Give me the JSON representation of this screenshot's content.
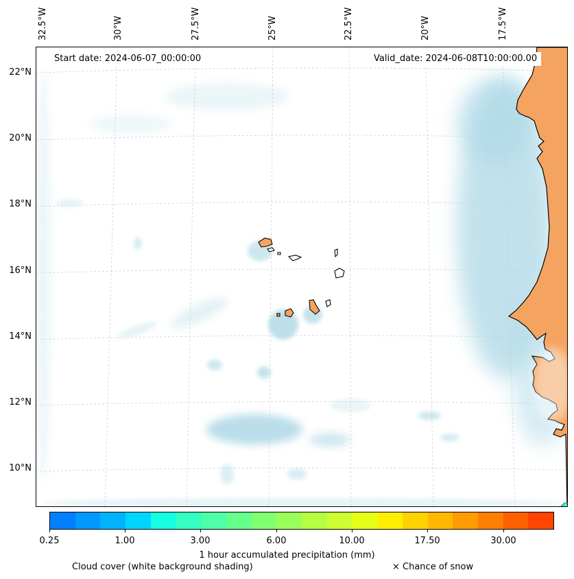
{
  "header": {
    "start_date": "Start date: 2024-06-07_00:00:00",
    "valid_date": "Valid_date: 2024-06-08T10:00:00.00"
  },
  "axes": {
    "longitude_labels": [
      "32.5°W",
      "30°W",
      "27.5°W",
      "25°W",
      "22.5°W",
      "20°W",
      "17.5°W"
    ],
    "latitude_labels": [
      "22°N",
      "20°N",
      "18°N",
      "16°N",
      "14°N",
      "12°N",
      "10°N"
    ]
  },
  "colorbar": {
    "colors": [
      "#0080ff",
      "#0099ff",
      "#00b3ff",
      "#00d5ff",
      "#16ffe0",
      "#33ffc2",
      "#4dffa8",
      "#66ff8c",
      "#80ff70",
      "#99ff5a",
      "#b3ff40",
      "#ccff30",
      "#e6ff18",
      "#ffee00",
      "#ffd200",
      "#ffb800",
      "#ff9c00",
      "#ff7f00",
      "#ff6000",
      "#ff4500"
    ],
    "tick_labels": [
      "0.25",
      "1.00",
      "3.00",
      "6.00",
      "10.00",
      "17.50",
      "30.00"
    ],
    "title": "1 hour accumulated precipitation (mm)"
  },
  "legend": {
    "cloud_cover": "Cloud cover (white background shading)",
    "snow": "× Chance of snow"
  },
  "colors": {
    "land": "#f4a460",
    "cloud": "#add8e6",
    "grid": "#c8c8c8"
  }
}
